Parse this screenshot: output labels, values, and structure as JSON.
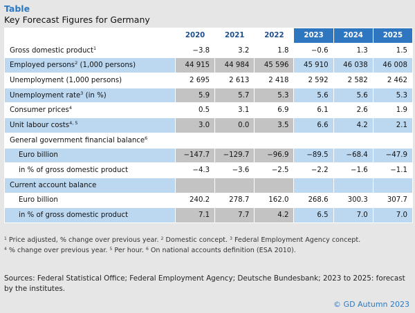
{
  "kicker": "Table",
  "title": "Key Forecast Figures for Germany",
  "years": [
    "2020",
    "2021",
    "2022",
    "2023",
    "2024",
    "2025"
  ],
  "rows": [
    {
      "label": "Gross domestic product",
      "sup": "1",
      "values": [
        "−3.8",
        "3.2",
        "1.8",
        "−0.6",
        "1.3",
        "1.5"
      ]
    },
    {
      "label": "Employed persons",
      "sup": "2",
      "suffix": " (1,000 persons)",
      "values": [
        "44 915",
        "44 984",
        "45 596",
        "45 910",
        "46 038",
        "46 008"
      ]
    },
    {
      "label": "Unemployment (1,000 persons)",
      "values": [
        "2 695",
        "2 613",
        "2 418",
        "2 592",
        "2 582",
        "2 462"
      ]
    },
    {
      "label": "Unemployment rate",
      "sup": "3",
      "suffix": " (in %)",
      "values": [
        "5.9",
        "5.7",
        "5.3",
        "5.6",
        "5.6",
        "5.3"
      ]
    },
    {
      "label": "Consumer prices",
      "sup": "4",
      "values": [
        "0.5",
        "3.1",
        "6.9",
        "6.1",
        "2.6",
        "1.9"
      ]
    },
    {
      "label": "Unit labour costs",
      "sup": "4, 5",
      "values": [
        "3.0",
        "0.0",
        "3.5",
        "6.6",
        "4.2",
        "2.1"
      ]
    },
    {
      "label": "General government financial balance",
      "sup": "6",
      "values": [
        "",
        "",
        "",
        "",
        "",
        ""
      ]
    },
    {
      "label": "Euro billion",
      "indent": true,
      "values": [
        "−147.7",
        "−129.7",
        "−96.9",
        "−89.5",
        "−68.4",
        "−47.9"
      ]
    },
    {
      "label": "in % of gross domestic product",
      "indent": true,
      "values": [
        "−4.3",
        "−3.6",
        "−2.5",
        "−2.2",
        "−1.6",
        "−1.1"
      ]
    },
    {
      "label": "Current account balance",
      "values": [
        "",
        "",
        "",
        "",
        "",
        ""
      ]
    },
    {
      "label": "Euro billion",
      "indent": true,
      "values": [
        "240.2",
        "278.7",
        "162.0",
        "268.6",
        "300.3",
        "307.7"
      ]
    },
    {
      "label": "in % of gross domestic product",
      "indent": true,
      "values": [
        "7.1",
        "7.7",
        "4.2",
        "6.5",
        "7.0",
        "7.0"
      ]
    }
  ],
  "footnotes": {
    "line1": [
      {
        "sup": "1",
        "text": " Price adjusted, % change over previous year. "
      },
      {
        "sup": "2",
        "text": " Domestic concept. "
      },
      {
        "sup": "3",
        "text": " Federal Employment Agency concept."
      }
    ],
    "line2": [
      {
        "sup": "4",
        "text": " % change over previous year. "
      },
      {
        "sup": "5",
        "text": " Per hour. "
      },
      {
        "sup": "6",
        "text": " On national accounts definition (ESA 2010)."
      }
    ]
  },
  "sources": "Sources: Federal Statistical Office; Federal Employment Agency; Deutsche Bundesbank; 2023 to 2025: forecast by the institutes.",
  "copyright": "© GD Autumn 2023"
}
